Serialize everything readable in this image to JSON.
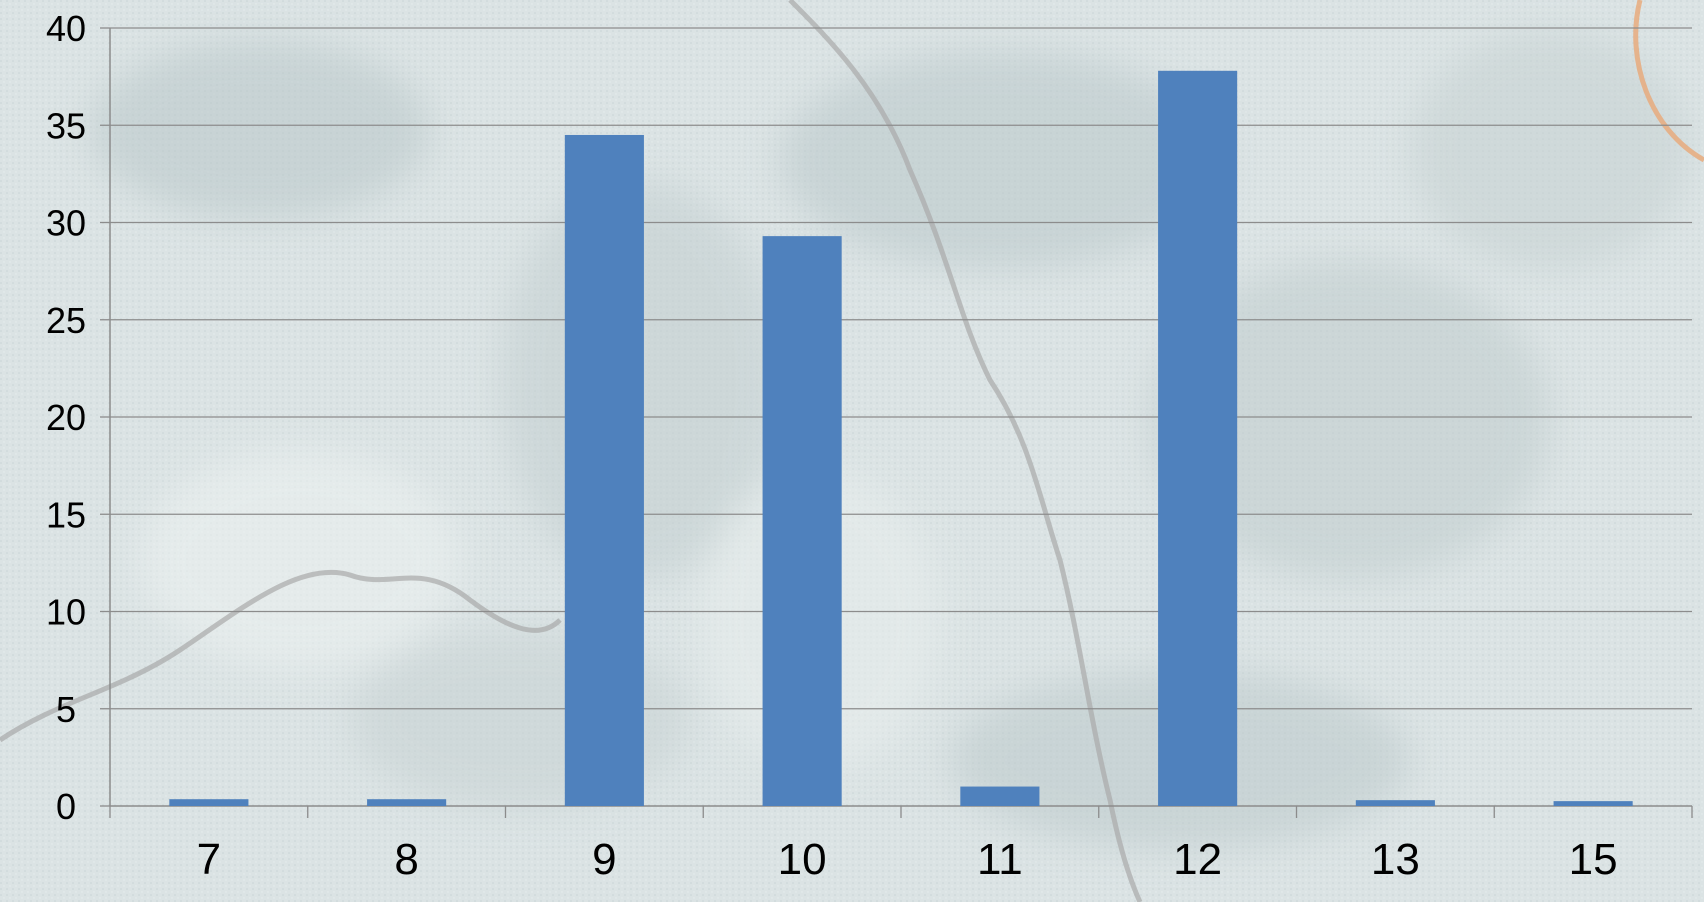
{
  "chart_data": {
    "type": "bar",
    "title": "",
    "xlabel": "",
    "ylabel": "",
    "categories": [
      "7",
      "8",
      "9",
      "10",
      "11",
      "12",
      "13",
      "15"
    ],
    "values": [
      0.35,
      0.35,
      34.5,
      29.3,
      1.0,
      37.8,
      0.3,
      0.25
    ],
    "ylim": [
      0,
      40
    ],
    "yticks": [
      "0",
      "5",
      "10",
      "15",
      "20",
      "25",
      "30",
      "35",
      "40"
    ],
    "grid": true,
    "legend": "none",
    "bar_color": "#4f81bd",
    "background": "aerial map image (faded)"
  }
}
